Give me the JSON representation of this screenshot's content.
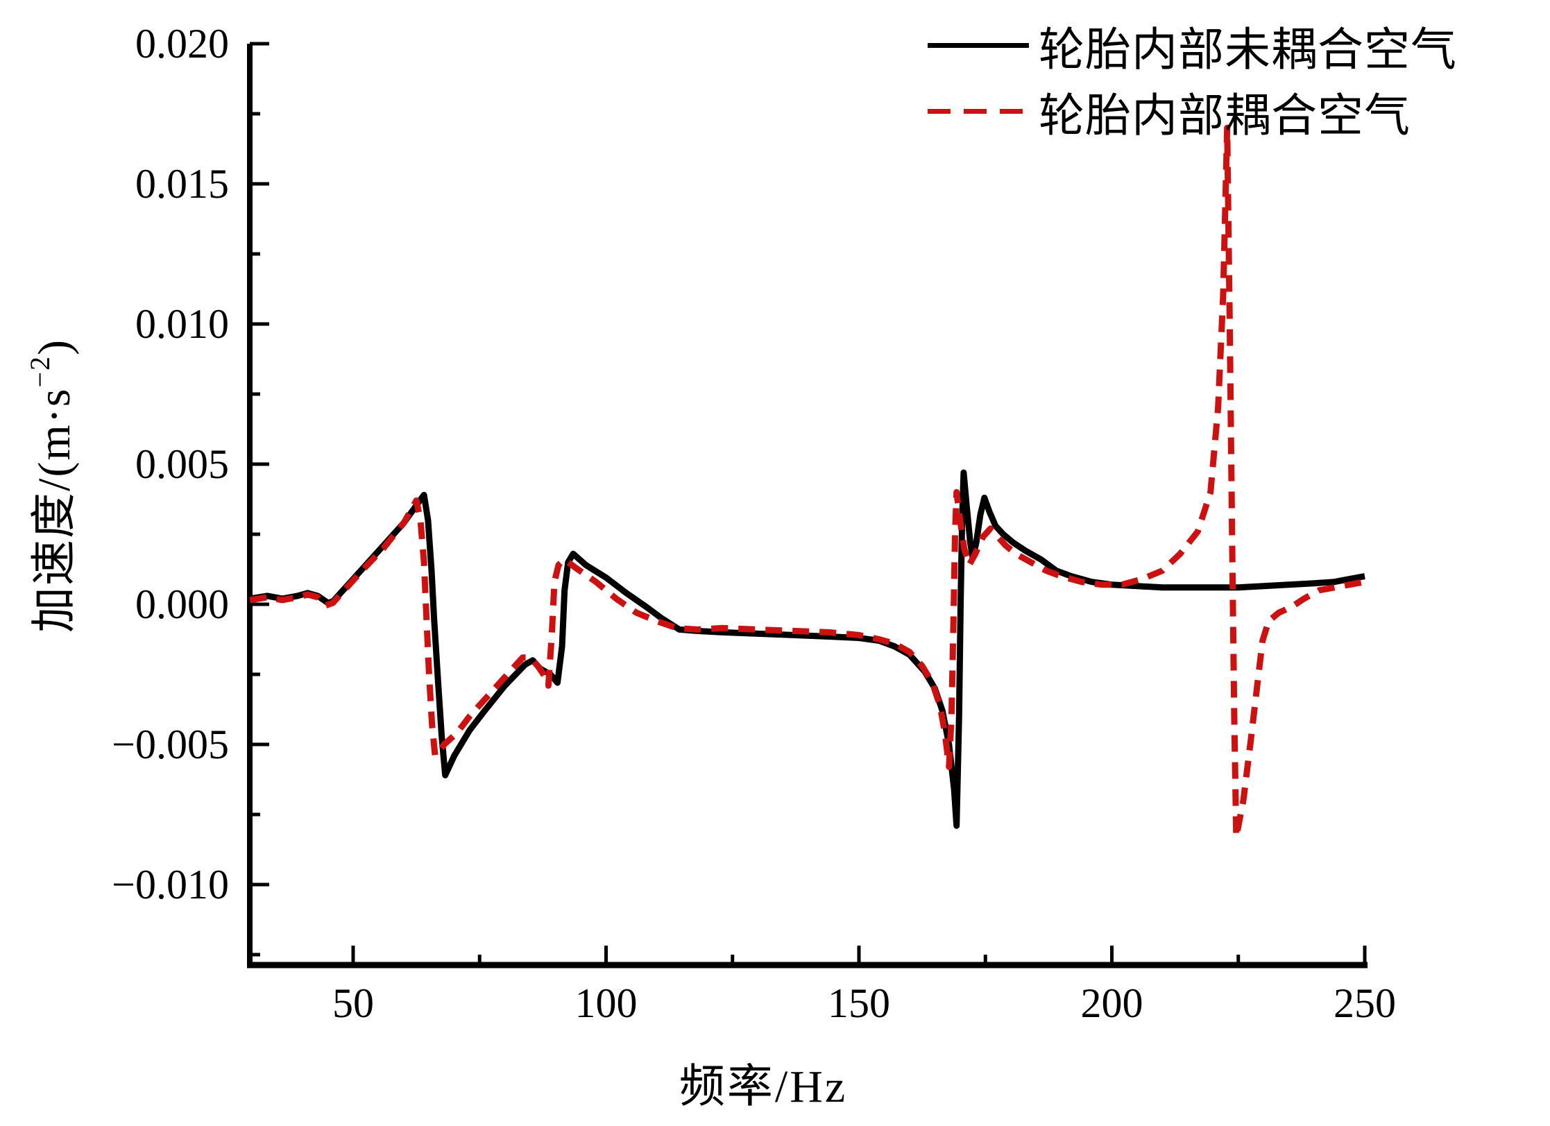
{
  "chart_data": {
    "type": "line",
    "title": "",
    "xlabel": "频率/Hz",
    "ylabel": "加速度/(m·s⁻²)",
    "ylabel_parts": {
      "base": "加速度/(m·s",
      "sup": "−2",
      "close": ")"
    },
    "xlim": [
      29.5,
      250
    ],
    "ylim": [
      -0.0129,
      0.02
    ],
    "grid": false,
    "legend_position": "top-right",
    "axis_color": "#000000",
    "x_major_ticks": [
      50,
      100,
      150,
      200,
      250
    ],
    "x_major_labels": [
      "50",
      "100",
      "150",
      "200",
      "250"
    ],
    "x_minor_ticks": [
      75,
      125,
      175,
      225
    ],
    "y_major_ticks": [
      0.02,
      0.015,
      0.01,
      0.005,
      0.0,
      -0.005,
      -0.01
    ],
    "y_major_labels": [
      "0.020",
      "0.015",
      "0.010",
      "0.005",
      "0.000",
      "−0.005",
      "−0.010"
    ],
    "y_minor_ticks": [
      0.0175,
      0.0125,
      0.0075,
      0.0025,
      -0.0025,
      -0.0075,
      -0.0125
    ],
    "series": [
      {
        "name": "轮胎内部未耦合空气",
        "color": "#000000",
        "style": "solid",
        "points": [
          [
            29.6,
            0.0002
          ],
          [
            33,
            0.0003
          ],
          [
            36,
            0.0002
          ],
          [
            39,
            0.0003
          ],
          [
            41,
            0.0004
          ],
          [
            43,
            0.0003
          ],
          [
            45,
            5e-05
          ],
          [
            46,
            0.0001
          ],
          [
            48,
            0.0005
          ],
          [
            52,
            0.0013
          ],
          [
            56,
            0.0021
          ],
          [
            60,
            0.0029
          ],
          [
            64,
            0.0039
          ],
          [
            64.8,
            0.003
          ],
          [
            65.5,
            0.0012
          ],
          [
            66,
            -0.0005
          ],
          [
            66.8,
            -0.0028
          ],
          [
            67.5,
            -0.0047
          ],
          [
            68.2,
            -0.0061
          ],
          [
            70,
            -0.0054
          ],
          [
            73,
            -0.0045
          ],
          [
            76,
            -0.0038
          ],
          [
            80,
            -0.0029
          ],
          [
            84,
            -0.00215
          ],
          [
            85.5,
            -0.002
          ],
          [
            87,
            -0.0023
          ],
          [
            89,
            -0.0025
          ],
          [
            90.4,
            -0.0028
          ],
          [
            91.3,
            -0.0015
          ],
          [
            91.8,
            0.0005
          ],
          [
            92.5,
            0.0015
          ],
          [
            93.5,
            0.0018
          ],
          [
            96,
            0.0014
          ],
          [
            100,
            0.00095
          ],
          [
            104,
            0.0004
          ],
          [
            108,
            -0.0001
          ],
          [
            111,
            -0.0005
          ],
          [
            114.5,
            -0.0009
          ],
          [
            118,
            -0.00095
          ],
          [
            123,
            -0.001
          ],
          [
            130,
            -0.00105
          ],
          [
            137,
            -0.0011
          ],
          [
            144,
            -0.00115
          ],
          [
            150,
            -0.0012
          ],
          [
            154,
            -0.0013
          ],
          [
            157,
            -0.0015
          ],
          [
            160,
            -0.0018
          ],
          [
            163,
            -0.0024
          ],
          [
            165,
            -0.003
          ],
          [
            166.5,
            -0.0038
          ],
          [
            167.8,
            -0.005
          ],
          [
            168.8,
            -0.0066
          ],
          [
            169.3,
            -0.0079
          ],
          [
            169.8,
            -0.004
          ],
          [
            170.1,
            0.0
          ],
          [
            170.4,
            0.003
          ],
          [
            170.7,
            0.0047
          ],
          [
            171.3,
            0.0035
          ],
          [
            172,
            0.0022
          ],
          [
            172.5,
            0.00165
          ],
          [
            173.2,
            0.0022
          ],
          [
            174,
            0.0032
          ],
          [
            174.8,
            0.0038
          ],
          [
            175.8,
            0.0033
          ],
          [
            177,
            0.0028
          ],
          [
            178.5,
            0.0025
          ],
          [
            180.5,
            0.0022
          ],
          [
            183,
            0.0019
          ],
          [
            186,
            0.0016
          ],
          [
            189,
            0.0012
          ],
          [
            192,
            0.001
          ],
          [
            196,
            0.0008
          ],
          [
            200,
            0.0007
          ],
          [
            205,
            0.00065
          ],
          [
            210,
            0.0006
          ],
          [
            215,
            0.0006
          ],
          [
            220,
            0.0006
          ],
          [
            225,
            0.0006
          ],
          [
            230,
            0.00065
          ],
          [
            235,
            0.0007
          ],
          [
            240,
            0.00075
          ],
          [
            244,
            0.0008
          ],
          [
            247,
            0.0009
          ],
          [
            250,
            0.001
          ]
        ]
      },
      {
        "name": "轮胎内部耦合空气",
        "color": "#cc1111",
        "style": "dashed",
        "points": [
          [
            29.6,
            0.00015
          ],
          [
            33,
            0.00025
          ],
          [
            36,
            0.00015
          ],
          [
            39,
            0.00025
          ],
          [
            41,
            0.00035
          ],
          [
            43,
            0.00025
          ],
          [
            44.5,
            -5e-05
          ],
          [
            46,
            5e-05
          ],
          [
            48,
            0.00045
          ],
          [
            52,
            0.00125
          ],
          [
            56,
            0.002
          ],
          [
            60,
            0.0029
          ],
          [
            62.5,
            0.0037
          ],
          [
            63.3,
            0.003
          ],
          [
            64,
            0.0015
          ],
          [
            64.5,
            -0.0005
          ],
          [
            65,
            -0.0025
          ],
          [
            65.6,
            -0.0043
          ],
          [
            66.2,
            -0.0054
          ],
          [
            68,
            -0.005
          ],
          [
            70.5,
            -0.0046
          ],
          [
            73,
            -0.004
          ],
          [
            76,
            -0.0034
          ],
          [
            80,
            -0.0026
          ],
          [
            83.5,
            -0.0019
          ],
          [
            85,
            -0.0019
          ],
          [
            86.5,
            -0.0022
          ],
          [
            88,
            -0.0026
          ],
          [
            88.6,
            -0.0029
          ],
          [
            89.3,
            -0.001
          ],
          [
            89.8,
            0.0008
          ],
          [
            90.6,
            0.0014
          ],
          [
            91.8,
            0.0016
          ],
          [
            94,
            0.0013
          ],
          [
            98,
            0.0008
          ],
          [
            102,
            0.0002
          ],
          [
            106,
            -0.0003
          ],
          [
            110,
            -0.0006
          ],
          [
            114,
            -0.00085
          ],
          [
            118,
            -0.0009
          ],
          [
            123,
            -0.00085
          ],
          [
            130,
            -0.0009
          ],
          [
            137,
            -0.00095
          ],
          [
            144,
            -0.001
          ],
          [
            150,
            -0.0011
          ],
          [
            154,
            -0.00125
          ],
          [
            157,
            -0.0014
          ],
          [
            160,
            -0.0017
          ],
          [
            162.5,
            -0.0022
          ],
          [
            164.5,
            -0.0028
          ],
          [
            166,
            -0.0036
          ],
          [
            167,
            -0.0046
          ],
          [
            167.8,
            -0.0058
          ],
          [
            168.3,
            -0.004
          ],
          [
            168.7,
            -0.0005
          ],
          [
            169,
            0.0025
          ],
          [
            169.3,
            0.004
          ],
          [
            170,
            0.003
          ],
          [
            170.8,
            0.002
          ],
          [
            171.8,
            0.0014
          ],
          [
            173,
            0.0018
          ],
          [
            174.5,
            0.0024
          ],
          [
            176,
            0.0027
          ],
          [
            177.5,
            0.0024
          ],
          [
            179,
            0.0021
          ],
          [
            181,
            0.0018
          ],
          [
            184,
            0.0015
          ],
          [
            187,
            0.0012
          ],
          [
            190,
            0.001
          ],
          [
            194,
            0.0008
          ],
          [
            198,
            0.0007
          ],
          [
            202,
            0.0007
          ],
          [
            206,
            0.0009
          ],
          [
            210,
            0.0012
          ],
          [
            213.5,
            0.0018
          ],
          [
            217,
            0.0026
          ],
          [
            219.5,
            0.004
          ],
          [
            221,
            0.007
          ],
          [
            222,
            0.011
          ],
          [
            222.8,
            0.017
          ],
          [
            223.3,
            0.01
          ],
          [
            223.8,
            0.002
          ],
          [
            224.2,
            -0.004
          ],
          [
            224.6,
            -0.0083
          ],
          [
            226,
            -0.007
          ],
          [
            227.5,
            -0.0048
          ],
          [
            228.8,
            -0.0028
          ],
          [
            229.8,
            -0.0013
          ],
          [
            231,
            -0.0006
          ],
          [
            233,
            -0.0003
          ],
          [
            235.5,
            -0.0001
          ],
          [
            238,
            0.0002
          ],
          [
            241,
            0.0005
          ],
          [
            244,
            0.0006
          ],
          [
            247,
            0.0007
          ],
          [
            250,
            0.0008
          ]
        ]
      }
    ]
  }
}
